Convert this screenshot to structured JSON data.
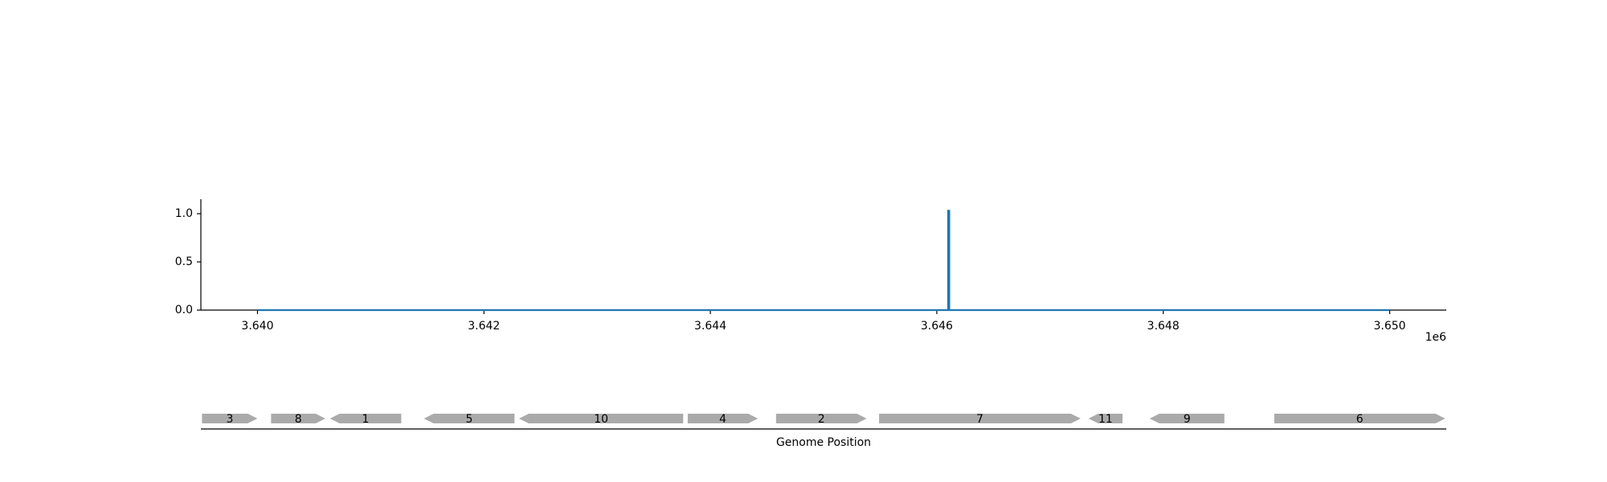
{
  "chart_data": [
    {
      "type": "line",
      "title": "",
      "xlabel": "",
      "ylabel": "",
      "x_offset_text": "1e6",
      "xlim": [
        3639500,
        3650500
      ],
      "ylim": [
        0.0,
        1.15
      ],
      "x_ticks": [
        3640000,
        3642000,
        3644000,
        3646000,
        3648000,
        3650000
      ],
      "x_tick_labels": [
        "3.640",
        "3.642",
        "3.644",
        "3.646",
        "3.648",
        "3.650"
      ],
      "y_ticks": [
        0.0,
        0.5,
        1.0
      ],
      "y_tick_labels": [
        "0.0",
        "0.5",
        "1.0"
      ],
      "grid": false,
      "series": [
        {
          "color": "#1f77b4",
          "points": [
            [
              3640000,
              0.0
            ],
            [
              3646100,
              0.0
            ],
            [
              3646100,
              1.03
            ],
            [
              3646110,
              1.03
            ],
            [
              3646110,
              0.0
            ],
            [
              3650000,
              0.0
            ]
          ]
        }
      ]
    },
    {
      "type": "gene-map",
      "xlabel": "Genome Position",
      "xlim": [
        3639500,
        3650500
      ],
      "color": "#aaaaaa",
      "genes": [
        {
          "label": "3",
          "start": 3639510,
          "end": 3640000,
          "strand": 1
        },
        {
          "label": "8",
          "start": 3640120,
          "end": 3640600,
          "strand": 1
        },
        {
          "label": "1",
          "start": 3640640,
          "end": 3641270,
          "strand": -1
        },
        {
          "label": "5",
          "start": 3641470,
          "end": 3642270,
          "strand": -1
        },
        {
          "label": "10",
          "start": 3642310,
          "end": 3643760,
          "strand": -1
        },
        {
          "label": "4",
          "start": 3643800,
          "end": 3644420,
          "strand": 1
        },
        {
          "label": "2",
          "start": 3644580,
          "end": 3645380,
          "strand": 1
        },
        {
          "label": "7",
          "start": 3645490,
          "end": 3647270,
          "strand": 1
        },
        {
          "label": "11",
          "start": 3647340,
          "end": 3647640,
          "strand": -1
        },
        {
          "label": "9",
          "start": 3647880,
          "end": 3648540,
          "strand": -1
        },
        {
          "label": "6",
          "start": 3648980,
          "end": 3650490,
          "strand": 1
        }
      ]
    }
  ]
}
